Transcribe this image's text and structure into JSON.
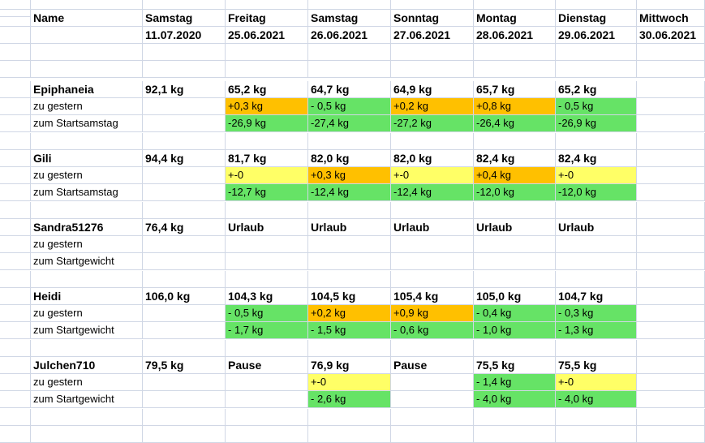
{
  "colors": {
    "orange": "#ffc000",
    "green": "#66e366",
    "yellow": "#ffff66",
    "grid": "#d0d7e5"
  },
  "header": {
    "name_label": "Name",
    "days": [
      {
        "day": "Samstag",
        "date": "11.07.2020"
      },
      {
        "day": "Freitag",
        "date": "25.06.2021"
      },
      {
        "day": "Samstag",
        "date": "26.06.2021"
      },
      {
        "day": "Sonntag",
        "date": "27.06.2021"
      },
      {
        "day": "Montag",
        "date": "28.06.2021"
      },
      {
        "day": "Dienstag",
        "date": "29.06.2021"
      },
      {
        "day": "Mittwoch",
        "date": "30.06.2021"
      }
    ]
  },
  "people": [
    {
      "name": "Epiphaneia",
      "weights": [
        "92,1 kg",
        "65,2 kg",
        "64,7 kg",
        "64,9 kg",
        "65,7 kg",
        "65,2 kg",
        ""
      ],
      "row2_label": "zu gestern",
      "row2": [
        {
          "v": "",
          "c": ""
        },
        {
          "v": "+0,3 kg",
          "c": "orange"
        },
        {
          "v": "- 0,5 kg",
          "c": "green"
        },
        {
          "v": "+0,2 kg",
          "c": "orange"
        },
        {
          "v": "+0,8 kg",
          "c": "orange"
        },
        {
          "v": "- 0,5 kg",
          "c": "green"
        },
        {
          "v": "",
          "c": ""
        }
      ],
      "row3_label": "zum Startsamstag",
      "row3": [
        {
          "v": "",
          "c": ""
        },
        {
          "v": "-26,9 kg",
          "c": "green"
        },
        {
          "v": "-27,4 kg",
          "c": "green"
        },
        {
          "v": "-27,2 kg",
          "c": "green"
        },
        {
          "v": "-26,4 kg",
          "c": "green"
        },
        {
          "v": "-26,9 kg",
          "c": "green"
        },
        {
          "v": "",
          "c": ""
        }
      ]
    },
    {
      "name": "Gili",
      "weights": [
        "94,4 kg",
        "81,7 kg",
        "82,0 kg",
        "82,0 kg",
        "82,4 kg",
        "82,4 kg",
        ""
      ],
      "row2_label": "zu gestern",
      "row2": [
        {
          "v": "",
          "c": ""
        },
        {
          "v": "+-0",
          "c": "yellow"
        },
        {
          "v": "+0,3 kg",
          "c": "orange"
        },
        {
          "v": "+-0",
          "c": "yellow"
        },
        {
          "v": "+0,4 kg",
          "c": "orange"
        },
        {
          "v": "+-0",
          "c": "yellow"
        },
        {
          "v": "",
          "c": ""
        }
      ],
      "row3_label": "zum Startsamstag",
      "row3": [
        {
          "v": "",
          "c": ""
        },
        {
          "v": "-12,7 kg",
          "c": "green"
        },
        {
          "v": "-12,4 kg",
          "c": "green"
        },
        {
          "v": "-12,4 kg",
          "c": "green"
        },
        {
          "v": "-12,0 kg",
          "c": "green"
        },
        {
          "v": "-12,0 kg",
          "c": "green"
        },
        {
          "v": "",
          "c": ""
        }
      ]
    },
    {
      "name": "Sandra51276",
      "weights": [
        "76,4 kg",
        "Urlaub",
        "Urlaub",
        "Urlaub",
        "Urlaub",
        "Urlaub",
        ""
      ],
      "row2_label": "zu gestern",
      "row2": [
        {
          "v": "",
          "c": ""
        },
        {
          "v": "",
          "c": ""
        },
        {
          "v": "",
          "c": ""
        },
        {
          "v": "",
          "c": ""
        },
        {
          "v": "",
          "c": ""
        },
        {
          "v": "",
          "c": ""
        },
        {
          "v": "",
          "c": ""
        }
      ],
      "row3_label": "zum Startgewicht",
      "row3": [
        {
          "v": "",
          "c": ""
        },
        {
          "v": "",
          "c": ""
        },
        {
          "v": "",
          "c": ""
        },
        {
          "v": "",
          "c": ""
        },
        {
          "v": "",
          "c": ""
        },
        {
          "v": "",
          "c": ""
        },
        {
          "v": "",
          "c": ""
        }
      ]
    },
    {
      "name": "Heidi",
      "weights": [
        "106,0 kg",
        "104,3 kg",
        "104,5 kg",
        "105,4 kg",
        "105,0 kg",
        "104,7 kg",
        ""
      ],
      "row2_label": "zu gestern",
      "row2": [
        {
          "v": "",
          "c": ""
        },
        {
          "v": "- 0,5 kg",
          "c": "green"
        },
        {
          "v": "+0,2 kg",
          "c": "orange"
        },
        {
          "v": "+0,9 kg",
          "c": "orange"
        },
        {
          "v": "- 0,4 kg",
          "c": "green"
        },
        {
          "v": "- 0,3 kg",
          "c": "green"
        },
        {
          "v": "",
          "c": ""
        }
      ],
      "row3_label": "zum Startgewicht",
      "row3": [
        {
          "v": "",
          "c": ""
        },
        {
          "v": "- 1,7 kg",
          "c": "green"
        },
        {
          "v": "- 1,5 kg",
          "c": "green"
        },
        {
          "v": "- 0,6 kg",
          "c": "green"
        },
        {
          "v": "- 1,0 kg",
          "c": "green"
        },
        {
          "v": "- 1,3 kg",
          "c": "green"
        },
        {
          "v": "",
          "c": ""
        }
      ]
    },
    {
      "name": "Julchen710",
      "weights": [
        "79,5 kg",
        "Pause",
        "76,9 kg",
        "Pause",
        "75,5 kg",
        "75,5 kg",
        ""
      ],
      "row2_label": "zu gestern",
      "row2": [
        {
          "v": "",
          "c": ""
        },
        {
          "v": "",
          "c": ""
        },
        {
          "v": "+-0",
          "c": "yellow"
        },
        {
          "v": "",
          "c": ""
        },
        {
          "v": "- 1,4 kg",
          "c": "green"
        },
        {
          "v": "+-0",
          "c": "yellow"
        },
        {
          "v": "",
          "c": ""
        }
      ],
      "row3_label": "zum Startgewicht",
      "row3": [
        {
          "v": "",
          "c": ""
        },
        {
          "v": "",
          "c": ""
        },
        {
          "v": "- 2,6 kg",
          "c": "green"
        },
        {
          "v": "",
          "c": ""
        },
        {
          "v": "- 4,0 kg",
          "c": "green"
        },
        {
          "v": "- 4,0 kg",
          "c": "green"
        },
        {
          "v": "",
          "c": ""
        }
      ]
    }
  ]
}
